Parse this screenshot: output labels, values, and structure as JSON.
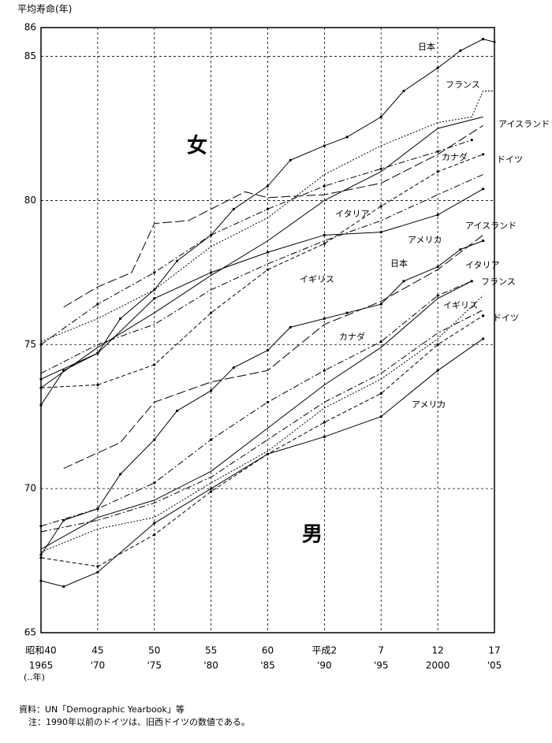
{
  "chart_data": {
    "type": "line",
    "title": "平均寿命(年)",
    "annotations": [
      "女",
      "男"
    ],
    "footnotes": [
      "資料：UN「Demographic Yearbook」等",
      "注：1990年以前のドイツは、旧西ドイツの数値である。"
    ],
    "x_unit_note": "(‥年)",
    "xlim": [
      1965,
      2005
    ],
    "ylim": [
      65,
      86
    ],
    "yticks": [
      65,
      70,
      75,
      80,
      85,
      86
    ],
    "xticks": [
      {
        "value": 1965,
        "label": "昭和40",
        "label2": "1965"
      },
      {
        "value": 1970,
        "label": "45",
        "label2": "'70"
      },
      {
        "value": 1975,
        "label": "50",
        "label2": "'75"
      },
      {
        "value": 1980,
        "label": "55",
        "label2": "'80"
      },
      {
        "value": 1985,
        "label": "60",
        "label2": "'85"
      },
      {
        "value": 1990,
        "label": "平成2",
        "label2": "'90"
      },
      {
        "value": 1995,
        "label": "7",
        "label2": "'95"
      },
      {
        "value": 2000,
        "label": "12",
        "label2": "2000"
      },
      {
        "value": 2005,
        "label": "17",
        "label2": "'05"
      }
    ],
    "grid": true,
    "series": [
      {
        "name": "日本",
        "color": "#000000",
        "dash": "solid",
        "marker": true,
        "x": [
          1965,
          1967,
          1970,
          1972,
          1975,
          1977,
          1980,
          1982,
          1985,
          1987,
          1990,
          1992,
          1995,
          1997,
          2000,
          2002,
          2004,
          2005
        ],
        "values": [
          72.9,
          74.1,
          74.7,
          75.9,
          76.9,
          77.9,
          78.8,
          79.7,
          80.5,
          81.4,
          81.9,
          82.2,
          82.9,
          83.8,
          84.6,
          85.2,
          85.6,
          85.5
        ]
      },
      {
        "name": "フランス",
        "color": "#000000",
        "dash": "dot",
        "marker": false,
        "x": [
          1965,
          1970,
          1975,
          1980,
          1985,
          1990,
          1995,
          2000,
          2003,
          2004,
          2005
        ],
        "values": [
          75.1,
          75.9,
          76.9,
          78.4,
          79.4,
          80.9,
          81.9,
          82.7,
          82.9,
          83.8,
          83.8
        ]
      },
      {
        "name": "アイスランド",
        "color": "#000000",
        "dash": "longdash",
        "marker": false,
        "x": [
          1967,
          1970,
          1973,
          1975,
          1978,
          1980,
          1983,
          1985,
          1990,
          1995,
          2000,
          2004
        ],
        "values": [
          76.3,
          77.0,
          77.5,
          79.2,
          79.3,
          79.7,
          80.3,
          80.1,
          80.2,
          80.6,
          81.6,
          82.6
        ]
      },
      {
        "name": "カナダ",
        "color": "#000000",
        "dash": "dashdot",
        "marker": true,
        "x": [
          1965,
          1970,
          1975,
          1980,
          1985,
          1990,
          1995,
          2000,
          2003
        ],
        "values": [
          75.0,
          76.4,
          77.5,
          78.8,
          79.7,
          80.5,
          81.1,
          81.7,
          82.1
        ]
      },
      {
        "name": "イタリア",
        "color": "#000000",
        "dash": "solid",
        "marker": false,
        "x": [
          1965,
          1970,
          1975,
          1980,
          1985,
          1990,
          1995,
          2000,
          2004
        ],
        "values": [
          73.5,
          74.9,
          76.1,
          77.4,
          78.6,
          80.0,
          81.0,
          82.5,
          82.9
        ]
      },
      {
        "name": "ドイツ",
        "color": "#000000",
        "dash": "dash",
        "marker": true,
        "x": [
          1965,
          1970,
          1975,
          1980,
          1985,
          1990,
          1995,
          2000,
          2004
        ],
        "values": [
          73.5,
          73.6,
          74.3,
          76.1,
          77.6,
          78.5,
          79.8,
          81.0,
          81.6
        ]
      },
      {
        "name": "アメリカ",
        "color": "#000000",
        "dash": "solid",
        "marker": true,
        "x": [
          1965,
          1970,
          1975,
          1980,
          1985,
          1990,
          1995,
          2000,
          2004
        ],
        "values": [
          73.8,
          74.7,
          76.6,
          77.5,
          78.2,
          78.8,
          78.9,
          79.5,
          80.4
        ]
      },
      {
        "name": "イギリス",
        "color": "#000000",
        "dash": "dashdot",
        "marker": false,
        "x": [
          1965,
          1970,
          1975,
          1980,
          1985,
          1990,
          1995,
          2000,
          2004
        ],
        "values": [
          74.0,
          75.0,
          75.7,
          76.9,
          77.8,
          78.6,
          79.3,
          80.2,
          80.9
        ]
      },
      {
        "name": "日本",
        "color": "#000000",
        "dash": "solid",
        "marker": true,
        "x": [
          1965,
          1967,
          1970,
          1972,
          1975,
          1977,
          1980,
          1982,
          1985,
          1987,
          1990,
          1992,
          1995,
          1997,
          2000,
          2002,
          2004
        ],
        "values": [
          67.7,
          68.9,
          69.3,
          70.5,
          71.7,
          72.7,
          73.4,
          74.2,
          74.8,
          75.6,
          75.9,
          76.1,
          76.4,
          77.2,
          77.7,
          78.3,
          78.6
        ]
      },
      {
        "name": "アイスランド",
        "color": "#000000",
        "dash": "longdash",
        "marker": false,
        "x": [
          1967,
          1972,
          1975,
          1980,
          1985,
          1990,
          1995,
          2000,
          2004
        ],
        "values": [
          70.7,
          71.6,
          73.0,
          73.7,
          74.1,
          75.7,
          76.5,
          77.6,
          78.8
        ]
      },
      {
        "name": "イタリア",
        "color": "#000000",
        "dash": "solid",
        "marker": false,
        "x": [
          1965,
          1970,
          1975,
          1980,
          1985,
          1990,
          1995,
          2000,
          2003
        ],
        "values": [
          67.9,
          69.0,
          69.6,
          70.6,
          72.1,
          73.6,
          74.9,
          76.6,
          77.2
        ]
      },
      {
        "name": "フランス",
        "color": "#000000",
        "dash": "dot",
        "marker": false,
        "x": [
          1965,
          1970,
          1975,
          1980,
          1985,
          1990,
          1995,
          2000,
          2004
        ],
        "values": [
          67.8,
          68.6,
          69.0,
          70.2,
          71.3,
          72.8,
          73.8,
          75.2,
          76.7
        ]
      },
      {
        "name": "イギリス",
        "color": "#000000",
        "dash": "dashdot",
        "marker": false,
        "x": [
          1965,
          1970,
          1975,
          1980,
          1985,
          1990,
          1995,
          2000,
          2004
        ],
        "values": [
          68.5,
          68.9,
          69.5,
          70.4,
          71.7,
          73.0,
          74.0,
          75.4,
          76.2
        ]
      },
      {
        "name": "カナダ",
        "color": "#000000",
        "dash": "dashdot",
        "marker": true,
        "x": [
          1965,
          1970,
          1975,
          1980,
          1985,
          1990,
          1995,
          2000,
          2003
        ],
        "values": [
          68.7,
          69.3,
          70.2,
          71.7,
          73.0,
          74.1,
          75.1,
          76.7,
          77.2
        ]
      },
      {
        "name": "ドイツ",
        "color": "#000000",
        "dash": "dash",
        "marker": true,
        "x": [
          1965,
          1970,
          1975,
          1980,
          1985,
          1990,
          1995,
          2000,
          2004
        ],
        "values": [
          67.6,
          67.3,
          68.4,
          69.9,
          71.2,
          72.3,
          73.3,
          75.0,
          76.0
        ]
      },
      {
        "name": "アメリカ",
        "color": "#000000",
        "dash": "solid",
        "marker": true,
        "x": [
          1965,
          1967,
          1970,
          1975,
          1980,
          1985,
          1990,
          1995,
          2000,
          2004
        ],
        "values": [
          66.8,
          66.6,
          67.1,
          68.8,
          70.0,
          71.2,
          71.8,
          72.5,
          74.1,
          75.2
        ]
      }
    ]
  }
}
